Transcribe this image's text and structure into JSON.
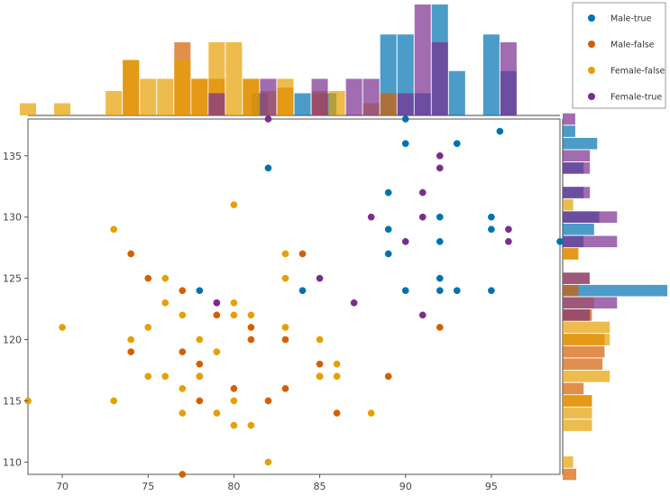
{
  "chart_data": {
    "type": "scatter",
    "title": "",
    "xlabel": "",
    "ylabel": "",
    "xlim": [
      68,
      99
    ],
    "ylim": [
      109,
      138
    ],
    "x_ticks": [
      70,
      75,
      80,
      85,
      90,
      95
    ],
    "y_ticks": [
      110,
      115,
      120,
      125,
      130,
      135
    ],
    "legend_position": "top-right",
    "series": [
      {
        "name": "Male-true",
        "color": "#0072b2",
        "points": [
          [
            82,
            134
          ],
          [
            90,
            136
          ],
          [
            93,
            136
          ],
          [
            95.5,
            137
          ],
          [
            89,
            132
          ],
          [
            92,
            130
          ],
          [
            95,
            130
          ],
          [
            89,
            129
          ],
          [
            95,
            129
          ],
          [
            92,
            128
          ],
          [
            99,
            128
          ],
          [
            89,
            127
          ],
          [
            92,
            125
          ],
          [
            78,
            124
          ],
          [
            84,
            124
          ],
          [
            90,
            124
          ],
          [
            92,
            124
          ],
          [
            93,
            124
          ],
          [
            95,
            124
          ],
          [
            90,
            138
          ]
        ],
        "hist_x": [
          {
            "x": 81.5,
            "h": 0.2
          },
          {
            "x": 84,
            "h": 0.2
          },
          {
            "x": 85.5,
            "h": 0.2
          },
          {
            "x": 89,
            "h": 0.73
          },
          {
            "x": 90,
            "h": 0.73
          },
          {
            "x": 91,
            "h": 0.2
          },
          {
            "x": 92,
            "h": 1.0
          },
          {
            "x": 93,
            "h": 0.4
          },
          {
            "x": 95,
            "h": 0.73
          },
          {
            "x": 96,
            "h": 0.4
          }
        ],
        "hist_y": [
          {
            "y": 137,
            "w": 0.12
          },
          {
            "y": 136,
            "w": 0.33
          },
          {
            "y": 134,
            "w": 0.2
          },
          {
            "y": 132,
            "w": 0.2
          },
          {
            "y": 130,
            "w": 0.35
          },
          {
            "y": 129,
            "w": 0.3
          },
          {
            "y": 128,
            "w": 0.2
          },
          {
            "y": 124,
            "w": 1.0
          }
        ]
      },
      {
        "name": "Male-false",
        "color": "#d55e00",
        "points": [
          [
            74,
            127
          ],
          [
            75,
            125
          ],
          [
            77,
            124
          ],
          [
            79,
            122
          ],
          [
            79,
            123
          ],
          [
            84,
            127
          ],
          [
            81,
            121
          ],
          [
            92,
            121
          ],
          [
            74,
            119
          ],
          [
            77,
            119
          ],
          [
            81,
            120
          ],
          [
            83,
            120
          ],
          [
            78,
            118
          ],
          [
            78,
            117
          ],
          [
            80,
            116
          ],
          [
            83,
            116
          ],
          [
            85,
            118
          ],
          [
            85,
            117
          ],
          [
            89,
            117
          ],
          [
            78,
            115
          ],
          [
            82,
            115
          ],
          [
            86,
            114
          ],
          [
            77,
            109
          ]
        ],
        "hist_x": [
          {
            "x": 74,
            "h": 0.5
          },
          {
            "x": 77,
            "h": 0.66
          },
          {
            "x": 78,
            "h": 0.33
          },
          {
            "x": 79,
            "h": 0.33
          },
          {
            "x": 81,
            "h": 0.33
          },
          {
            "x": 83,
            "h": 0.25
          },
          {
            "x": 85,
            "h": 0.2
          },
          {
            "x": 89,
            "h": 0.2
          }
        ],
        "hist_y": [
          {
            "y": 127,
            "w": 0.15
          },
          {
            "y": 124,
            "w": 0.15
          },
          {
            "y": 122,
            "w": 0.28
          },
          {
            "y": 120,
            "w": 0.4
          },
          {
            "y": 119,
            "w": 0.4
          },
          {
            "y": 118,
            "w": 0.38
          },
          {
            "y": 116,
            "w": 0.2
          },
          {
            "y": 115,
            "w": 0.28
          },
          {
            "y": 109,
            "w": 0.13
          }
        ]
      },
      {
        "name": "Female-false",
        "color": "#e69f00",
        "points": [
          [
            68,
            115
          ],
          [
            70,
            121
          ],
          [
            73,
            129
          ],
          [
            73,
            115
          ],
          [
            74,
            120
          ],
          [
            75,
            121
          ],
          [
            75,
            117
          ],
          [
            76,
            125
          ],
          [
            76,
            123
          ],
          [
            76,
            117
          ],
          [
            77,
            122
          ],
          [
            77,
            116
          ],
          [
            77,
            114
          ],
          [
            78,
            120
          ],
          [
            78,
            117
          ],
          [
            79,
            119
          ],
          [
            79,
            114
          ],
          [
            80,
            131
          ],
          [
            80,
            123
          ],
          [
            80,
            122
          ],
          [
            80,
            115
          ],
          [
            80,
            113
          ],
          [
            81,
            122
          ],
          [
            81,
            113
          ],
          [
            82,
            110
          ],
          [
            83,
            127
          ],
          [
            83,
            125
          ],
          [
            83,
            121
          ],
          [
            85,
            120
          ],
          [
            85,
            117
          ],
          [
            86,
            118
          ],
          [
            86,
            117
          ],
          [
            88,
            114
          ]
        ],
        "hist_x": [
          {
            "x": 68,
            "h": 0.11
          },
          {
            "x": 70,
            "h": 0.11
          },
          {
            "x": 73,
            "h": 0.22
          },
          {
            "x": 74,
            "h": 0.5
          },
          {
            "x": 75,
            "h": 0.33
          },
          {
            "x": 76,
            "h": 0.33
          },
          {
            "x": 77,
            "h": 0.5
          },
          {
            "x": 78,
            "h": 0.33
          },
          {
            "x": 79,
            "h": 0.66
          },
          {
            "x": 80,
            "h": 0.66
          },
          {
            "x": 81,
            "h": 0.33
          },
          {
            "x": 82,
            "h": 0.22
          },
          {
            "x": 83,
            "h": 0.33
          },
          {
            "x": 85,
            "h": 0.22
          },
          {
            "x": 86,
            "h": 0.22
          },
          {
            "x": 88,
            "h": 0.11
          }
        ],
        "hist_y": [
          {
            "y": 131,
            "w": 0.1
          },
          {
            "y": 127,
            "w": 0.15
          },
          {
            "y": 125,
            "w": 0.25
          },
          {
            "y": 123,
            "w": 0.3
          },
          {
            "y": 122,
            "w": 0.25
          },
          {
            "y": 121,
            "w": 0.45
          },
          {
            "y": 120,
            "w": 0.45
          },
          {
            "y": 117,
            "w": 0.45
          },
          {
            "y": 115,
            "w": 0.28
          },
          {
            "y": 114,
            "w": 0.28
          },
          {
            "y": 113,
            "w": 0.28
          },
          {
            "y": 110,
            "w": 0.1
          }
        ]
      },
      {
        "name": "Female-true",
        "color": "#7b2d8e",
        "points": [
          [
            82,
            138
          ],
          [
            92,
            135
          ],
          [
            92,
            134
          ],
          [
            91,
            132
          ],
          [
            88,
            130
          ],
          [
            91,
            130
          ],
          [
            96,
            129
          ],
          [
            90,
            128
          ],
          [
            96,
            128
          ],
          [
            85,
            125
          ],
          [
            87,
            123
          ],
          [
            79,
            123
          ],
          [
            91,
            122
          ]
        ],
        "hist_x": [
          {
            "x": 79,
            "h": 0.2
          },
          {
            "x": 82,
            "h": 0.33
          },
          {
            "x": 85,
            "h": 0.33
          },
          {
            "x": 87,
            "h": 0.33
          },
          {
            "x": 88,
            "h": 0.33
          },
          {
            "x": 90,
            "h": 0.2
          },
          {
            "x": 91,
            "h": 1.0
          },
          {
            "x": 92,
            "h": 0.66
          },
          {
            "x": 96,
            "h": 0.66
          }
        ],
        "hist_y": [
          {
            "y": 138,
            "w": 0.12
          },
          {
            "y": 135,
            "w": 0.26
          },
          {
            "y": 134,
            "w": 0.26
          },
          {
            "y": 132,
            "w": 0.26
          },
          {
            "y": 130,
            "w": 0.52
          },
          {
            "y": 128,
            "w": 0.52
          },
          {
            "y": 125,
            "w": 0.26
          },
          {
            "y": 123,
            "w": 0.52
          },
          {
            "y": 122,
            "w": 0.26
          }
        ]
      }
    ]
  }
}
